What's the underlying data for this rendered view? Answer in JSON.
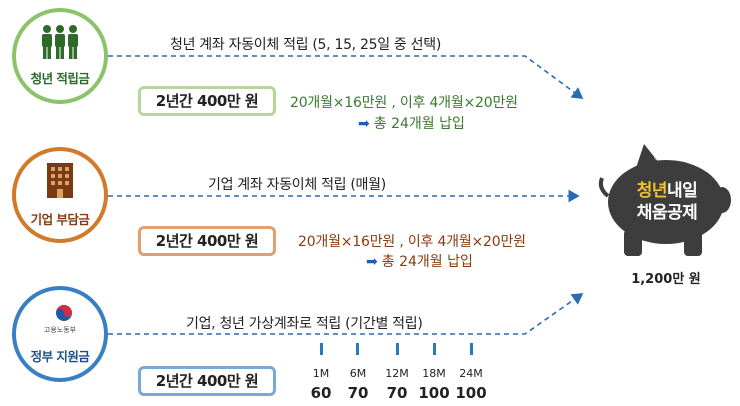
{
  "youth": {
    "label": "청년 적립금",
    "desc": "청년 계좌 자동이체 적립 (5, 15, 25일 중 선택)",
    "amount": "2년간 400만 원",
    "calc": "20개월×16만원 , 이후 4개월×20만원",
    "total": "총 24개월 납입",
    "color": "#8cc36a"
  },
  "company": {
    "label": "기업 부담금",
    "desc": "기업 계좌 자동이체 적립 (매월)",
    "amount": "2년간 400만 원",
    "calc": "20개월×16만원 , 이후 4개월×20만원",
    "total": "총 24개월 납입",
    "color": "#d07a2a"
  },
  "government": {
    "label": "정부 지원금",
    "logo_text": "고용노동부",
    "desc": "기업, 청년 가상계좌로 적립 (기간별 적립)",
    "amount": "2년간 400만 원",
    "color": "#3a7fc1",
    "months": [
      "1M",
      "6M",
      "12M",
      "18M",
      "24M"
    ],
    "values": [
      "60",
      "70",
      "70",
      "100",
      "100"
    ]
  },
  "piggy": {
    "title_highlight": "청년",
    "title_rest1": "내일",
    "title_line2": "채움공제",
    "total": "1,200만 원"
  }
}
